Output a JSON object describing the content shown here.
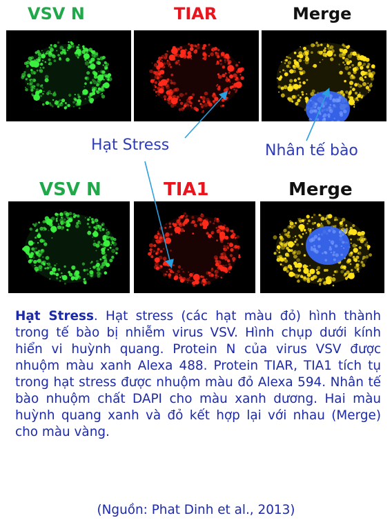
{
  "row1": {
    "labels": [
      "VSV N",
      "TIAR",
      "Merge"
    ],
    "colors": [
      "#20a84a",
      "#e8141e",
      "#111111"
    ]
  },
  "row2": {
    "labels": [
      "VSV N",
      "TIA1",
      "Merge"
    ],
    "colors": [
      "#20a84a",
      "#e8141e",
      "#111111"
    ]
  },
  "callouts": {
    "stress": "Hạt Stress",
    "nucleus": "Nhân tế bào"
  },
  "caption": {
    "bold": "Hạt Stress",
    "text": ". Hạt stress (các hạt màu đỏ) hình thành trong tế bào bị nhiễm virus VSV. Hình chụp dưới kính hiển vi huỳnh quang. Protein N của virus VSV được nhuộm màu xanh Alexa 488. Protein TIAR, TIA1 tích tụ trong hạt stress được nhuộm màu đỏ Alexa 594. Nhân tế bào nhuộm chất DAPI cho màu xanh dương. Hai màu huỳnh quang xanh và đỏ kết hợp lại với nhau (Merge) cho màu vàng."
  },
  "source": "(Nguồn: Phat Dinh et al., 2013)",
  "palette": {
    "green": "#3cf040",
    "red": "#ff2a1a",
    "yellow": "#ffe21a",
    "nucleus": "#3a6cff",
    "callout_text": "#2e3bb8",
    "arrow": "#2aa0e0"
  }
}
